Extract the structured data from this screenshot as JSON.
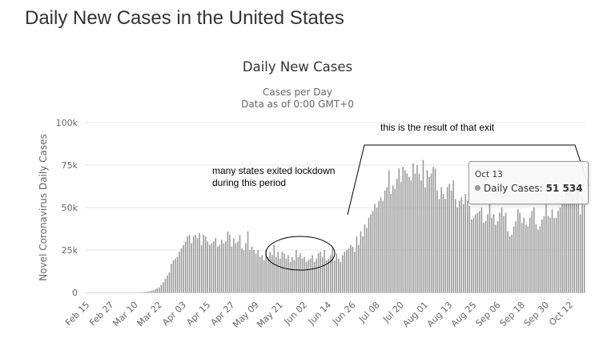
{
  "page": {
    "title": "Daily New Cases in the United States"
  },
  "annotations": {
    "lockdown_note_line1": "many states exited lockdown",
    "lockdown_note_line2": "during this period",
    "result_note": "this is the result of that exit"
  },
  "tooltip": {
    "date": "Oct 13",
    "series": "Daily Cases:",
    "value": "51 534"
  },
  "colors": {
    "bar": "#999999",
    "grid": "#e6e6e6",
    "axis": "#ccd6eb"
  },
  "chart_data": {
    "type": "bar",
    "title": "Daily New Cases",
    "subtitle_line1": "Cases per Day",
    "subtitle_line2": "Data as of 0:00 GMT+0",
    "xlabel": "",
    "ylabel": "Novel Coronavirus Daily Cases",
    "ylim": [
      0,
      100000
    ],
    "yticks": [
      0,
      25000,
      50000,
      75000,
      100000
    ],
    "ytick_labels": [
      "0",
      "25k",
      "50k",
      "75k",
      "100k"
    ],
    "xtick_labels": [
      "Feb 15",
      "Feb 27",
      "Mar 10",
      "Mar 22",
      "Apr 03",
      "Apr 15",
      "Apr 27",
      "May 09",
      "May 21",
      "Jun 02",
      "Jun 14",
      "Jun 26",
      "Jul 08",
      "Jul 20",
      "Aug 01",
      "Aug 13",
      "Aug 25",
      "Sep 06",
      "Sep 18",
      "Sep 30",
      "Oct 12"
    ],
    "start_date": "Feb 15",
    "end_date": "Oct 13",
    "series": [
      {
        "name": "Daily Cases",
        "values": [
          0,
          0,
          0,
          0,
          0,
          0,
          0,
          0,
          0,
          0,
          0,
          0,
          0,
          0,
          0,
          0,
          0,
          0,
          0,
          0,
          0,
          0,
          0,
          0,
          0,
          20,
          50,
          100,
          200,
          300,
          500,
          700,
          1000,
          1300,
          1800,
          2500,
          3000,
          4500,
          6000,
          8000,
          10000,
          12000,
          17000,
          19000,
          20000,
          21000,
          24000,
          26000,
          28000,
          30000,
          33000,
          34000,
          29000,
          33000,
          34000,
          32000,
          35000,
          28000,
          34000,
          33000,
          30000,
          28000,
          29000,
          30000,
          32000,
          27000,
          28000,
          31000,
          29000,
          30000,
          36000,
          34000,
          27000,
          32000,
          29000,
          30000,
          34000,
          26000,
          25000,
          29000,
          36000,
          25000,
          27000,
          25000,
          23000,
          25000,
          21000,
          22000,
          19000,
          25000,
          21000,
          24000,
          22000,
          28000,
          21000,
          24000,
          20000,
          24000,
          23000,
          20000,
          22000,
          18000,
          21000,
          19000,
          25000,
          21000,
          23000,
          20000,
          21000,
          18000,
          19000,
          20000,
          22000,
          18000,
          20000,
          23000,
          24000,
          21000,
          25000,
          19000,
          20000,
          22000,
          26000,
          19000,
          23000,
          20000,
          18000,
          22000,
          24000,
          25000,
          26000,
          28000,
          27000,
          24000,
          33000,
          28000,
          36000,
          33000,
          40000,
          38000,
          44000,
          46000,
          48000,
          52000,
          50000,
          54000,
          56000,
          54000,
          60000,
          62000,
          72000,
          58000,
          63000,
          61000,
          67000,
          73000,
          65000,
          74000,
          72000,
          70000,
          68000,
          66000,
          76000,
          70000,
          75000,
          70000,
          66000,
          78000,
          62000,
          72000,
          68000,
          70000,
          74000,
          73000,
          60000,
          55000,
          62000,
          58000,
          55000,
          62000,
          64000,
          60000,
          66000,
          55000,
          50000,
          54000,
          56000,
          52000,
          58000,
          54000,
          51000,
          43000,
          44000,
          46000,
          47000,
          48000,
          50000,
          41000,
          42000,
          46000,
          52000,
          44000,
          46000,
          40000,
          42000,
          47000,
          50000,
          45000,
          47000,
          36000,
          33000,
          34000,
          39000,
          42000,
          49000,
          47000,
          41000,
          44000,
          40000,
          39000,
          44000,
          48000,
          50000,
          40000,
          37000,
          39000,
          43000,
          45000,
          58000,
          45000,
          44000,
          49000,
          44000,
          44000,
          48000,
          50000,
          55000,
          55000,
          61000,
          62000,
          61000,
          58000,
          57000,
          64000,
          65000,
          46000,
          56000,
          51534
        ]
      }
    ]
  }
}
